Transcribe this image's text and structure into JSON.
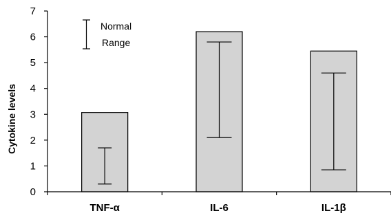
{
  "chart_data": {
    "type": "bar",
    "ylabel": "Cytokine levels",
    "ylim": [
      0,
      7
    ],
    "yticks": [
      0,
      1,
      2,
      3,
      4,
      5,
      6,
      7
    ],
    "grid": false,
    "categories": [
      "TNF-α",
      "IL-6",
      "IL-1β"
    ],
    "values": [
      3.07,
      6.2,
      5.45
    ],
    "normal_range": [
      {
        "low": 0.3,
        "high": 1.7
      },
      {
        "low": 2.1,
        "high": 5.8
      },
      {
        "low": 0.85,
        "high": 4.6
      }
    ],
    "legend": {
      "line1": "Normal",
      "line2": "Range",
      "position": "top-left"
    },
    "colors": {
      "bar_fill": "#d3d3d3",
      "bar_stroke": "#000000",
      "axis": "#000000"
    }
  }
}
